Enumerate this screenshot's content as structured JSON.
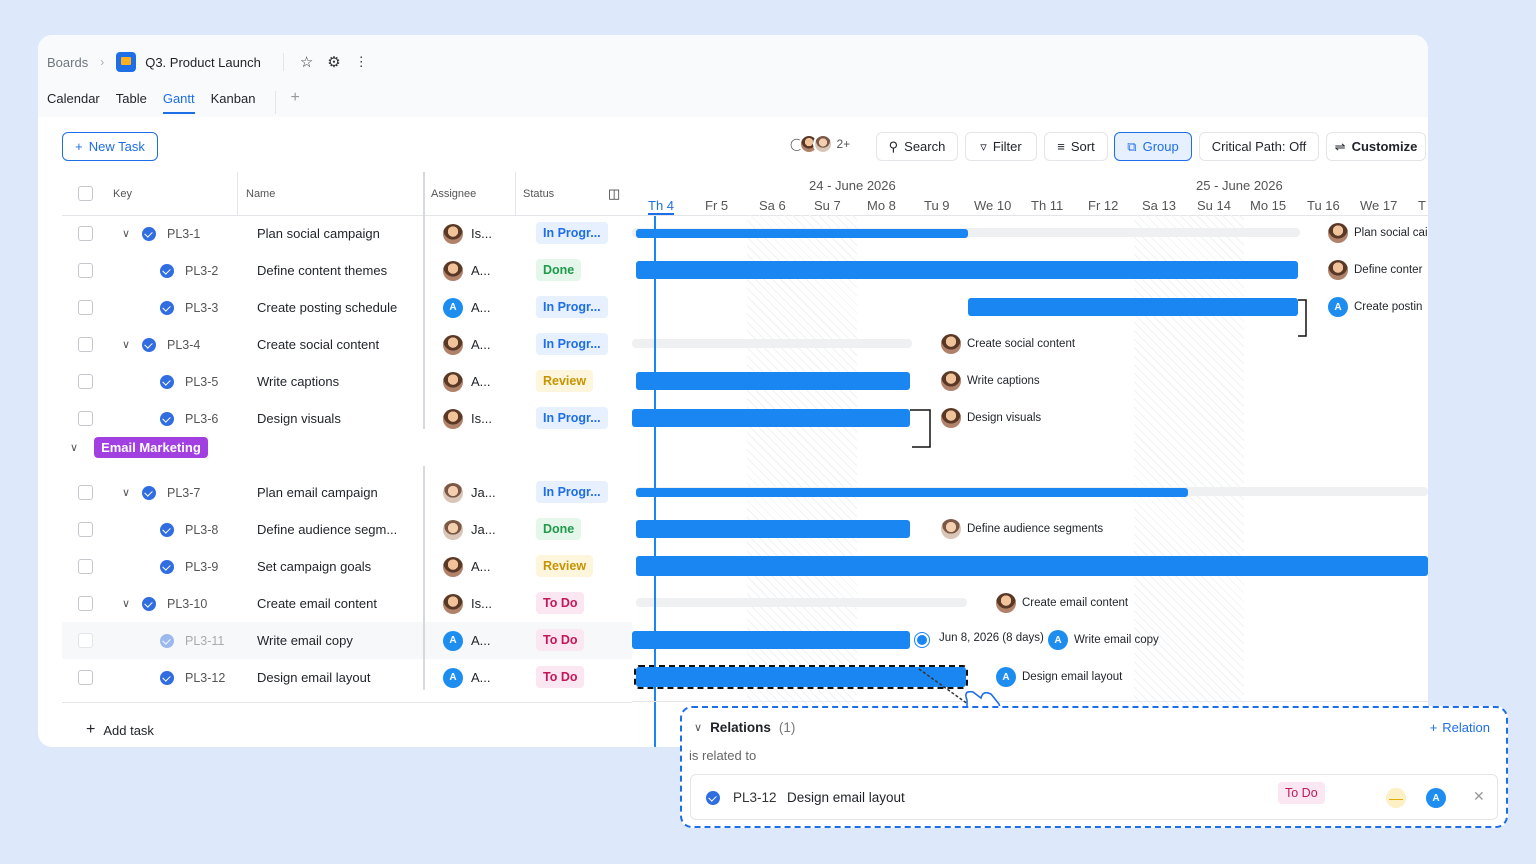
{
  "breadcrumb": {
    "root": "Boards",
    "board": "Q3. Product Launch"
  },
  "views": [
    "Calendar",
    "Table",
    "Gantt",
    "Kanban"
  ],
  "active_view": "Gantt",
  "toolbar": {
    "new_task": "New Task",
    "avatars_more": "2+",
    "search": "Search",
    "filter": "Filter",
    "sort": "Sort",
    "group": "Group",
    "critical_path": "Critical Path: Off",
    "customize": "Customize"
  },
  "columns": {
    "key": "Key",
    "name": "Name",
    "assignee": "Assignee",
    "status": "Status"
  },
  "rows": [
    {
      "key": "PL3-1",
      "name": "Plan social campaign",
      "assignee": "Is...",
      "status": "In Progr..."
    },
    {
      "key": "PL3-2",
      "name": "Define content themes",
      "assignee": "A...",
      "status": "Done"
    },
    {
      "key": "PL3-3",
      "name": "Create posting schedule",
      "assignee": "A...",
      "status": "In Progr..."
    },
    {
      "key": "PL3-4",
      "name": "Create social content",
      "assignee": "A...",
      "status": "In Progr..."
    },
    {
      "key": "PL3-5",
      "name": "Write captions",
      "assignee": "A...",
      "status": "Review"
    },
    {
      "key": "PL3-6",
      "name": "Design visuals",
      "assignee": "Is...",
      "status": "In Progr..."
    },
    {
      "key": "PL3-7",
      "name": "Plan email campaign",
      "assignee": "Ja...",
      "status": "In Progr..."
    },
    {
      "key": "PL3-8",
      "name": "Define audience segm...",
      "assignee": "Ja...",
      "status": "Done"
    },
    {
      "key": "PL3-9",
      "name": "Set campaign goals",
      "assignee": "A...",
      "status": "Review"
    },
    {
      "key": "PL3-10",
      "name": "Create email content",
      "assignee": "Is...",
      "status": "To Do"
    },
    {
      "key": "PL3-11",
      "name": "Write email copy",
      "assignee": "A...",
      "status": "To Do"
    },
    {
      "key": "PL3-12",
      "name": "Design email layout",
      "assignee": "A...",
      "status": "To Do"
    }
  ],
  "group": {
    "name": "Email Marketing",
    "color": "#a23fe0"
  },
  "add_task": "Add task",
  "timeline": {
    "weeks": [
      "24 - June 2026",
      "25 - June 2026"
    ],
    "days": [
      "Th 4",
      "Fr 5",
      "Sa 6",
      "Su 7",
      "Mo 8",
      "Tu 9",
      "We 10",
      "Th 11",
      "Fr 12",
      "Sa 13",
      "Su 14",
      "Mo 15",
      "Tu 16",
      "We 17",
      "T"
    ],
    "today": "Th 4"
  },
  "gantt_labels": [
    "Plan social cai",
    "Define conter",
    "Create postin",
    "Create social content",
    "Write captions",
    "Design visuals",
    "Define audience segments",
    "Create email content",
    "Write email copy",
    "Design email layout"
  ],
  "drag_tooltip": "Jun 8, 2026 (8 days)",
  "avatar_initial": "A",
  "relations": {
    "title": "Relations",
    "count": "(1)",
    "add": "Relation",
    "type": "is related to",
    "item": {
      "key": "PL3-12",
      "name": "Design email layout",
      "status": "To Do"
    }
  },
  "colors": {
    "accent": "#1e6ee8",
    "bar": "#1a86f2"
  }
}
